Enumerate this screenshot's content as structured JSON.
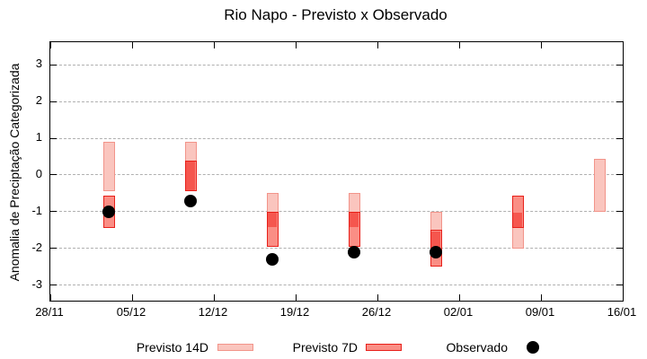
{
  "title": "Rio Napo - Previsto x Observado",
  "y_axis": {
    "label": "Anomalia de Preciptação Categorizada",
    "tick_values": [
      3,
      2,
      1,
      0,
      -1,
      -2,
      -3
    ]
  },
  "x_axis": {
    "ticks": [
      {
        "label": "28/11",
        "day": 0
      },
      {
        "label": "05/12",
        "day": 7
      },
      {
        "label": "12/12",
        "day": 14
      },
      {
        "label": "19/12",
        "day": 21
      },
      {
        "label": "26/12",
        "day": 28
      },
      {
        "label": "02/01",
        "day": 35
      },
      {
        "label": "09/01",
        "day": 42
      },
      {
        "label": "16/01",
        "day": 49
      }
    ]
  },
  "legend": {
    "items": [
      {
        "label": "Previsto 14D",
        "swatch": "light-red-box"
      },
      {
        "label": "Previsto 7D",
        "swatch": "red-box"
      },
      {
        "label": "Observado",
        "swatch": "black-dot"
      }
    ]
  },
  "colors": {
    "forecast14_fill": "#fac5be",
    "forecast14_border": "#f2948a",
    "forecast7_fill": "#fa8e85",
    "forecast7_border": "#e8201a",
    "overlap_fill": "#f5564e",
    "observed": "#000000",
    "grid": "#b0b0b0",
    "axis": "#000000"
  },
  "chart_data": {
    "type": "bar",
    "subtype": "forecast-range-bars-with-observed-points",
    "title": "Rio Napo - Previsto x Observado",
    "xlabel": "",
    "ylabel": "Anomalia de Preciptação Categorizada",
    "ylim": [
      -3.415,
      3.61
    ],
    "xlim_days": [
      0,
      49
    ],
    "x_tick_dates": [
      "28/11",
      "05/12",
      "12/12",
      "19/12",
      "26/12",
      "02/01",
      "09/01",
      "16/01"
    ],
    "grid": "horizontal-dashed-only",
    "legend_position": "below-plot",
    "series_names": [
      "Previsto 14D",
      "Previsto 7D",
      "Observado"
    ],
    "points": [
      {
        "date": "03/12",
        "day": 5,
        "previsto_14d": [
          0.9,
          -0.45
        ],
        "previsto_7d": [
          -0.55,
          -1.45
        ],
        "observado": -1.0
      },
      {
        "date": "10/12",
        "day": 12,
        "previsto_14d": [
          0.9,
          -0.45
        ],
        "previsto_7d": [
          0.4,
          -0.45
        ],
        "observado": -0.7
      },
      {
        "date": "17/12",
        "day": 19,
        "previsto_14d": [
          -0.5,
          -1.45
        ],
        "previsto_7d": [
          -1.0,
          -1.95
        ],
        "observado": -2.3
      },
      {
        "date": "24/12",
        "day": 26,
        "previsto_14d": [
          -0.5,
          -1.45
        ],
        "previsto_7d": [
          -1.0,
          -1.95
        ],
        "observado": -2.1
      },
      {
        "date": "31/12",
        "day": 33,
        "previsto_14d": [
          -1.0,
          -2.1
        ],
        "previsto_7d": [
          -1.5,
          -2.5
        ],
        "observado": -2.1
      },
      {
        "date": "07/01",
        "day": 40,
        "previsto_14d": [
          -1.0,
          -2.0
        ],
        "previsto_7d": [
          -0.55,
          -1.45
        ],
        "observado": null
      },
      {
        "date": "14/01",
        "day": 47,
        "previsto_14d": [
          0.45,
          -1.0
        ],
        "previsto_7d": null,
        "observado": null
      }
    ]
  }
}
